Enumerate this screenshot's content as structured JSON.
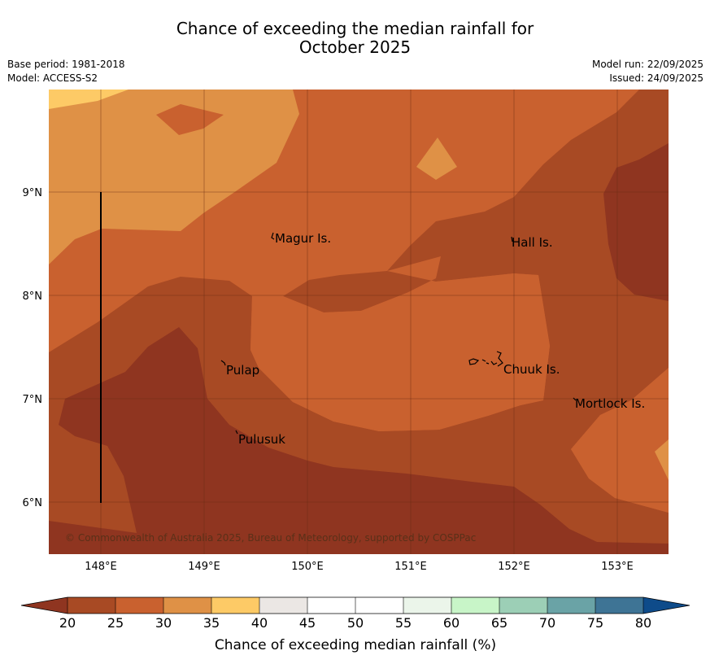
{
  "title": {
    "line1": "Chance of exceeding the median rainfall for",
    "line2": "October 2025"
  },
  "meta": {
    "base_period": "Base period: 1981-2018",
    "model": "Model: ACCESS-S2",
    "model_run": "Model run: 22/09/2025",
    "issued": "Issued: 24/09/2025"
  },
  "map": {
    "lat_labels": [
      "9°N",
      "8°N",
      "7°N",
      "6°N"
    ],
    "lon_labels": [
      "148°E",
      "149°E",
      "150°E",
      "151°E",
      "152°E",
      "153°E"
    ],
    "places": [
      {
        "name": "Magur Is."
      },
      {
        "name": "Hall Is."
      },
      {
        "name": "Pulap"
      },
      {
        "name": "Chuuk Is."
      },
      {
        "name": "Mortlock Is."
      },
      {
        "name": "Pulusuk"
      }
    ],
    "copyright": "© Commonwealth of Australia 2025, Bureau of Meteorology, supported by COSPPac"
  },
  "colorbar": {
    "ticks": [
      "20",
      "25",
      "30",
      "35",
      "40",
      "45",
      "50",
      "55",
      "60",
      "65",
      "70",
      "75",
      "80"
    ],
    "colors": {
      "under": "#8f3520",
      "c20_25": "#a84a24",
      "c25_30": "#c9612f",
      "c30_35": "#df9146",
      "c35_40": "#fdca66",
      "c40_45": "#ebe7e4",
      "c45_50": "#ffffff",
      "c50_55": "#ffffff",
      "c55_60": "#ebf5ea",
      "c60_65": "#c8f5c8",
      "c65_70": "#9ccfb6",
      "c70_75": "#6aa3a6",
      "c75_80": "#3e7495",
      "over": "#0e4b8a"
    },
    "label": "Chance of exceeding median rainfall (%)"
  }
}
